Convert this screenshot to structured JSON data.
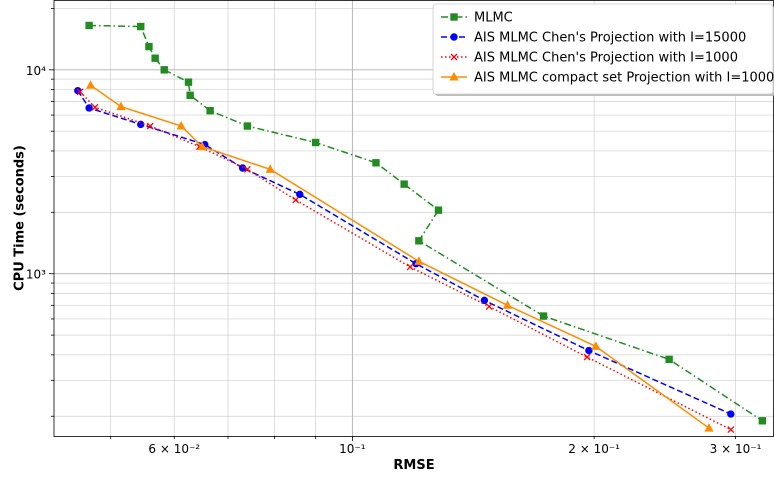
{
  "chart_data": {
    "type": "line",
    "xlabel": "RMSE",
    "ylabel": "CPU Time (seconds)",
    "xscale": "log",
    "yscale": "log",
    "xlim": [
      0.0425,
      0.335
    ],
    "ylim": [
      160,
      22000
    ],
    "grid": "major and minor",
    "legend_position": "top-right",
    "x_ticks": [
      {
        "value": 0.06,
        "label": "6 × 10⁻²"
      },
      {
        "value": 0.1,
        "label": "10⁻¹"
      },
      {
        "value": 0.2,
        "label": "2 × 10⁻¹"
      },
      {
        "value": 0.3,
        "label": "3 × 10⁻¹"
      }
    ],
    "y_ticks": [
      {
        "value": 1000,
        "label": "10³"
      },
      {
        "value": 10000,
        "label": "10⁴"
      }
    ],
    "series": [
      {
        "name": "MLMC",
        "color": "#228b22",
        "linestyle": "dashdot",
        "marker": "square",
        "points": [
          [
            0.047,
            16500
          ],
          [
            0.0545,
            16300
          ],
          [
            0.0558,
            13000
          ],
          [
            0.0568,
            11400
          ],
          [
            0.0583,
            10000
          ],
          [
            0.0625,
            8700
          ],
          [
            0.0628,
            7500
          ],
          [
            0.0665,
            6300
          ],
          [
            0.074,
            5300
          ],
          [
            0.09,
            4400
          ],
          [
            0.107,
            3500
          ],
          [
            0.116,
            2750
          ],
          [
            0.128,
            2050
          ],
          [
            0.121,
            1450
          ],
          [
            0.173,
            620
          ],
          [
            0.248,
            380
          ],
          [
            0.324,
            190
          ]
        ]
      },
      {
        "name": "AIS MLMC Chen's Projection with I=15000",
        "color": "#0000ff",
        "linestyle": "dashed",
        "marker": "circle",
        "points": [
          [
            0.0455,
            7900
          ],
          [
            0.047,
            6500
          ],
          [
            0.0545,
            5400
          ],
          [
            0.0655,
            4300
          ],
          [
            0.073,
            3300
          ],
          [
            0.086,
            2450
          ],
          [
            0.12,
            1120
          ],
          [
            0.146,
            740
          ],
          [
            0.197,
            420
          ],
          [
            0.296,
            205
          ]
        ]
      },
      {
        "name": "AIS MLMC Chen's Projection with I=1000",
        "color": "#ff0000",
        "linestyle": "dotted",
        "marker": "x",
        "points": [
          [
            0.0458,
            7800
          ],
          [
            0.0478,
            6550
          ],
          [
            0.056,
            5300
          ],
          [
            0.0645,
            4200
          ],
          [
            0.074,
            3250
          ],
          [
            0.085,
            2300
          ],
          [
            0.118,
            1080
          ],
          [
            0.148,
            690
          ],
          [
            0.196,
            390
          ],
          [
            0.296,
            172
          ]
        ]
      },
      {
        "name": "AIS MLMC compact set Projection with I=1000",
        "color": "#ff8c00",
        "linestyle": "solid",
        "marker": "triangle",
        "points": [
          [
            0.0472,
            8400
          ],
          [
            0.0515,
            6600
          ],
          [
            0.0612,
            5300
          ],
          [
            0.065,
            4200
          ],
          [
            0.079,
            3250
          ],
          [
            0.121,
            1150
          ],
          [
            0.156,
            700
          ],
          [
            0.201,
            440
          ],
          [
            0.278,
            175
          ]
        ]
      }
    ]
  }
}
